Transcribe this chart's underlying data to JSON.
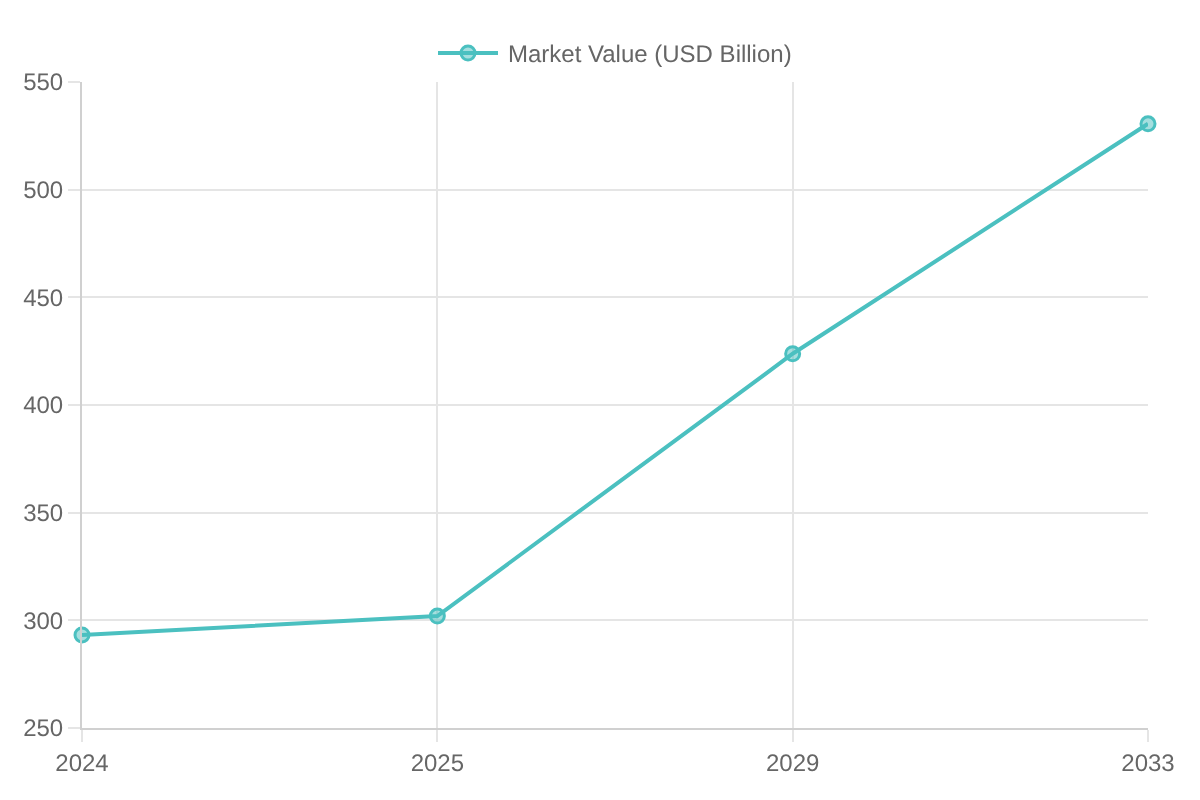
{
  "chart_data": {
    "type": "line",
    "categories": [
      "2024",
      "2025",
      "2029",
      "2033"
    ],
    "series": [
      {
        "name": "Market Value (USD Billion)",
        "color": "#4bc0c0",
        "values": [
          293.2,
          302,
          423.8,
          530.6
        ]
      }
    ],
    "ylim": [
      250,
      550
    ],
    "yticks": [
      250,
      300,
      350,
      400,
      450,
      500,
      550
    ],
    "grid": true,
    "legend": "top",
    "marker": "circle",
    "line_style": "solid"
  }
}
